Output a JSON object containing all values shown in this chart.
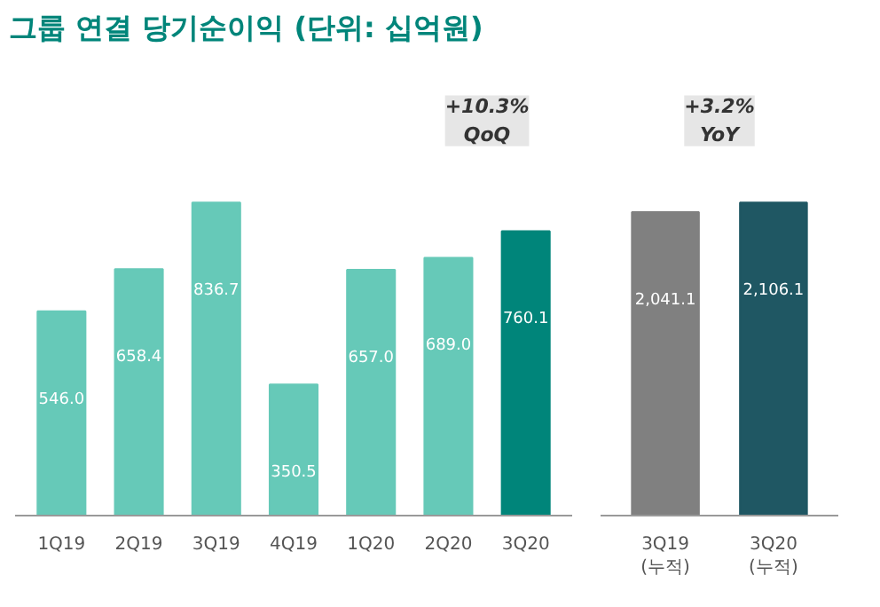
{
  "chart_data": [
    {
      "type": "bar",
      "title": "그룹 연결 당기순이익 (단위: 십억원)",
      "categories": [
        "1Q19",
        "2Q19",
        "3Q19",
        "4Q19",
        "1Q20",
        "2Q20",
        "3Q20"
      ],
      "values": [
        546.0,
        658.4,
        836.7,
        350.5,
        657.0,
        689.0,
        760.1
      ],
      "colors": [
        "#66c9b8",
        "#66c9b8",
        "#66c9b8",
        "#66c9b8",
        "#66c9b8",
        "#66c9b8",
        "#00857a"
      ],
      "value_labels": [
        "546.0",
        "658.4",
        "836.7",
        "350.5",
        "657.0",
        "689.0",
        "760.1"
      ],
      "tick_labels": "x",
      "grid": false,
      "annotations": [
        "+10.3%\nQoQ"
      ]
    },
    {
      "type": "bar",
      "categories": [
        "3Q19\n(누적)",
        "3Q20\n(누적)"
      ],
      "values": [
        2041.1,
        2106.1
      ],
      "colors": [
        "#808080",
        "#1f5763"
      ],
      "value_labels": [
        "2,041.1",
        "2,106.1"
      ],
      "tick_labels": "x",
      "grid": false,
      "annotations": [
        "+3.2%\nYoY"
      ]
    }
  ]
}
